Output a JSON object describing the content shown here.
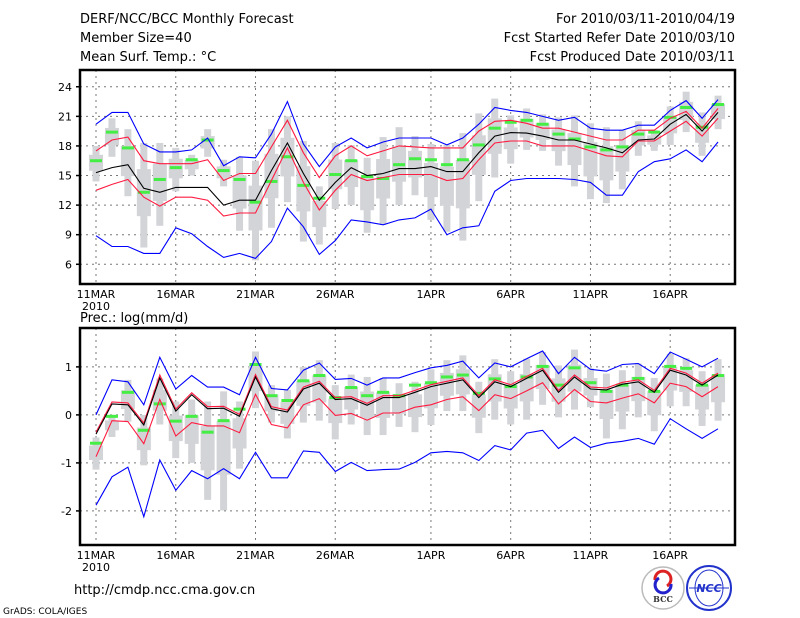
{
  "header": {
    "title": "DERF/NCC/BCC Monthly Forecast",
    "member_size": "Member Size=40",
    "variable": "Mean Surf. Temp.: °C",
    "period": "For 2010/03/11-2010/04/19",
    "start_date": "Fcst Started Refer Date 2010/03/10",
    "produced_date": "Fcst Produced Date 2010/03/11"
  },
  "footer": {
    "url": "http://cmdp.ncc.cma.gov.cn",
    "credit": "GrADS: COLA/IGES",
    "logo_bcc": "BCC",
    "logo_ncc": "NCC"
  },
  "colors": {
    "outer": "#0000ff",
    "spread": "#ff1a40",
    "mean": "#000000",
    "marker": "#44ee44",
    "box": "#d3d4d8"
  },
  "chart_data": [
    {
      "type": "line",
      "title": "Mean Surf. Temp.: °C",
      "ylim": [
        4,
        25.7
      ],
      "yticks": [
        "6",
        "9",
        "12",
        "15",
        "18",
        "21",
        "24"
      ],
      "ytick_values": [
        6,
        9,
        12,
        15,
        18,
        21,
        24
      ],
      "xtick_labels": [
        "11MAR",
        "16MAR",
        "21MAR",
        "26MAR",
        "1APR",
        "6APR",
        "11APR",
        "16APR"
      ],
      "xtick_days": [
        0,
        5,
        10,
        15,
        21,
        26,
        31,
        36
      ],
      "year_label": "2010",
      "grid": true,
      "series": [
        {
          "name": "upper-outer",
          "values": [
            20.2,
            21.4,
            21.4,
            18.2,
            17.4,
            17.4,
            17.6,
            18.8,
            16.0,
            16.9,
            16.8,
            19.2,
            22.5,
            18.2,
            15.9,
            17.9,
            18.8,
            17.8,
            18.4,
            18.8,
            18.8,
            18.8,
            18.1,
            18.8,
            20.2,
            21.9,
            21.6,
            21.4,
            21.0,
            20.6,
            20.9,
            19.8,
            19.6,
            19.6,
            20.1,
            20.1,
            21.6,
            22.6,
            20.8,
            22.7
          ]
        },
        {
          "name": "upper-spread",
          "values": [
            17.5,
            18.6,
            18.9,
            16.5,
            16.2,
            16.2,
            16.2,
            16.6,
            14.5,
            15.2,
            15.2,
            17.9,
            20.6,
            17.3,
            14.8,
            17.0,
            18.0,
            17.0,
            17.5,
            18.0,
            17.9,
            17.8,
            17.8,
            17.8,
            19.5,
            20.5,
            20.6,
            20.3,
            19.8,
            19.8,
            19.4,
            19.0,
            18.6,
            18.6,
            19.6,
            19.6,
            20.8,
            21.5,
            19.8,
            21.8
          ]
        },
        {
          "name": "ensemble-mean",
          "values": [
            15.3,
            15.8,
            16.1,
            13.7,
            13.3,
            13.8,
            13.8,
            13.8,
            12.0,
            12.5,
            12.5,
            15.5,
            18.3,
            15.2,
            12.5,
            14.3,
            15.8,
            15.0,
            15.2,
            15.7,
            15.7,
            15.9,
            15.4,
            15.4,
            17.3,
            19.0,
            19.35,
            19.3,
            19.0,
            18.6,
            18.6,
            18.2,
            17.8,
            17.3,
            18.6,
            18.7,
            20.2,
            21.2,
            19.5,
            21.4
          ]
        },
        {
          "name": "lower-spread",
          "values": [
            13.5,
            14.1,
            14.6,
            12.8,
            11.9,
            12.8,
            12.8,
            12.5,
            10.9,
            11.2,
            11.2,
            14.5,
            17.8,
            14.3,
            11.5,
            13.5,
            15.1,
            14.5,
            14.8,
            15.1,
            15.1,
            15.1,
            14.5,
            14.7,
            16.6,
            18.3,
            18.5,
            18.5,
            18.0,
            18.0,
            18.0,
            17.5,
            17.0,
            16.9,
            18.5,
            18.5,
            19.5,
            20.5,
            19.0,
            20.8
          ]
        },
        {
          "name": "lower-outer",
          "values": [
            8.9,
            7.8,
            7.8,
            7.1,
            7.1,
            9.7,
            9.1,
            7.8,
            6.7,
            7.1,
            6.6,
            8.3,
            11.7,
            9.8,
            7.0,
            8.4,
            10.5,
            10.3,
            10.0,
            10.5,
            10.7,
            11.6,
            9.0,
            9.7,
            9.9,
            13.4,
            14.5,
            14.7,
            14.7,
            14.7,
            14.6,
            14.3,
            13.0,
            13.0,
            15.4,
            16.4,
            16.7,
            17.6,
            16.4,
            18.4
          ]
        }
      ],
      "markers": [
        16.5,
        19.4,
        17.8,
        13.3,
        14.6,
        15.8,
        16.6,
        18.6,
        15.5,
        14.6,
        12.3,
        14.4,
        16.9,
        14.0,
        12.7,
        15.1,
        16.5,
        14.9,
        14.7,
        16.1,
        16.7,
        16.6,
        16.1,
        16.6,
        18.1,
        19.8,
        20.4,
        20.6,
        20.2,
        19.2,
        18.7,
        17.9,
        17.6,
        17.9,
        19.2,
        19.4,
        20.9,
        21.9,
        19.9,
        22.2
      ],
      "range_high": [
        18.0,
        20.8,
        19.7,
        18.3,
        18.3,
        17.8,
        17.1,
        19.7,
        16.6,
        16.9,
        16.5,
        19.7,
        21.0,
        18.5,
        13.9,
        18.3,
        18.1,
        16.8,
        18.9,
        19.9,
        19.0,
        18.2,
        18.1,
        19.3,
        21.3,
        22.8,
        21.1,
        21.8,
        21.2,
        20.9,
        21.1,
        20.3,
        19.9,
        19.6,
        20.5,
        19.6,
        22.0,
        23.5,
        21.4,
        23.1
      ],
      "range_low": [
        14.4,
        16.9,
        12.9,
        7.7,
        9.9,
        13.4,
        15.0,
        16.9,
        13.9,
        9.4,
        6.4,
        9.7,
        12.3,
        8.3,
        8.0,
        11.6,
        12.0,
        9.2,
        10.0,
        12.0,
        13.0,
        10.5,
        9.3,
        8.4,
        12.4,
        14.8,
        16.2,
        17.6,
        17.5,
        16.0,
        13.9,
        12.6,
        12.2,
        13.6,
        17.0,
        17.5,
        18.1,
        19.4,
        17.0,
        19.7
      ]
    },
    {
      "type": "line",
      "title": "Prec.: log(mm/d)",
      "ylim": [
        -2.71,
        1.81
      ],
      "yticks": [
        "-2",
        "-1",
        "0",
        "1"
      ],
      "ytick_values": [
        -2,
        -1,
        0,
        1
      ],
      "xtick_labels": [
        "11MAR",
        "16MAR",
        "21MAR",
        "26MAR",
        "1APR",
        "6APR",
        "11APR",
        "16APR"
      ],
      "xtick_days": [
        0,
        5,
        10,
        15,
        21,
        26,
        31,
        36
      ],
      "year_label": "2010",
      "grid": true,
      "series": [
        {
          "name": "upper-outer",
          "values": [
            0.0,
            0.73,
            0.69,
            0.21,
            1.2,
            0.54,
            0.82,
            0.58,
            0.58,
            0.42,
            1.2,
            0.55,
            0.52,
            0.93,
            1.08,
            0.74,
            0.76,
            0.62,
            0.77,
            0.77,
            0.88,
            0.98,
            1.03,
            1.12,
            0.77,
            1.08,
            1.0,
            1.17,
            1.33,
            0.86,
            1.2,
            0.95,
            0.91,
            1.05,
            1.07,
            0.86,
            1.31,
            1.16,
            1.0,
            1.18
          ]
        },
        {
          "name": "upper-spread",
          "values": [
            -0.36,
            0.27,
            0.25,
            -0.17,
            0.83,
            0.12,
            0.46,
            0.17,
            0.18,
            0.01,
            0.84,
            0.17,
            0.1,
            0.58,
            0.7,
            0.36,
            0.38,
            0.24,
            0.4,
            0.4,
            0.51,
            0.63,
            0.7,
            0.77,
            0.4,
            0.73,
            0.63,
            0.8,
            0.97,
            0.51,
            0.83,
            0.58,
            0.56,
            0.68,
            0.73,
            0.51,
            0.97,
            0.87,
            0.66,
            0.87
          ]
        },
        {
          "name": "ensemble-mean",
          "values": [
            -0.4,
            0.23,
            0.21,
            -0.21,
            0.77,
            0.08,
            0.42,
            0.13,
            0.14,
            -0.03,
            0.79,
            0.13,
            0.06,
            0.54,
            0.66,
            0.32,
            0.34,
            0.2,
            0.36,
            0.36,
            0.47,
            0.59,
            0.66,
            0.73,
            0.36,
            0.69,
            0.59,
            0.76,
            0.93,
            0.47,
            0.79,
            0.54,
            0.52,
            0.64,
            0.69,
            0.47,
            0.93,
            0.83,
            0.62,
            0.83
          ]
        },
        {
          "name": "lower-spread",
          "values": [
            -0.87,
            -0.12,
            -0.14,
            -0.6,
            0.32,
            -0.44,
            -0.16,
            -0.23,
            -0.23,
            -0.37,
            0.43,
            -0.2,
            -0.27,
            0.21,
            0.34,
            -0.01,
            0.03,
            -0.11,
            0.04,
            0.04,
            0.16,
            0.21,
            0.32,
            0.38,
            0.09,
            0.42,
            0.34,
            0.5,
            0.67,
            0.23,
            0.53,
            0.28,
            0.25,
            0.35,
            0.44,
            0.25,
            0.66,
            0.59,
            0.38,
            0.59
          ]
        },
        {
          "name": "lower-outer",
          "values": [
            -1.88,
            -1.29,
            -1.09,
            -2.12,
            -0.94,
            -1.57,
            -1.16,
            -1.33,
            -1.12,
            -1.33,
            -0.78,
            -1.31,
            -1.31,
            -0.75,
            -0.78,
            -1.18,
            -0.99,
            -1.16,
            -1.14,
            -1.13,
            -0.99,
            -0.79,
            -0.76,
            -0.79,
            -0.95,
            -0.64,
            -0.73,
            -0.38,
            -0.32,
            -0.7,
            -0.46,
            -0.68,
            -0.59,
            -0.55,
            -0.49,
            -0.61,
            -0.08,
            -0.29,
            -0.49,
            -0.29
          ]
        }
      ],
      "markers": [
        -0.59,
        -0.03,
        0.47,
        -0.32,
        0.23,
        -0.13,
        -0.03,
        -0.36,
        -0.12,
        0.12,
        1.05,
        0.4,
        0.3,
        0.71,
        0.82,
        0.36,
        0.57,
        0.4,
        0.47,
        0.4,
        0.62,
        0.67,
        0.79,
        0.83,
        0.45,
        0.75,
        0.59,
        0.79,
        1.01,
        0.62,
        0.98,
        0.67,
        0.49,
        0.62,
        0.76,
        0.49,
        1.01,
        0.97,
        0.62,
        0.82
      ],
      "range_high": [
        -0.47,
        0.0,
        0.73,
        0.0,
        0.76,
        0.28,
        0.32,
        0.28,
        0.49,
        0.28,
        1.32,
        0.62,
        0.52,
        1.0,
        1.14,
        0.62,
        0.84,
        0.79,
        0.77,
        0.66,
        0.69,
        0.95,
        1.14,
        1.24,
        0.69,
        1.16,
        0.91,
        1.17,
        1.31,
        1.03,
        1.36,
        0.97,
        0.86,
        0.93,
        1.07,
        0.77,
        1.27,
        1.18,
        0.91,
        1.16
      ],
      "range_low": [
        -1.14,
        -0.46,
        -0.14,
        -1.05,
        -0.2,
        -0.9,
        -1.0,
        -1.77,
        -1.99,
        -1.12,
        0.14,
        -0.16,
        -0.49,
        -0.16,
        -0.12,
        -0.51,
        -0.2,
        -0.42,
        -0.42,
        -0.25,
        -0.36,
        -0.21,
        0.08,
        0.08,
        -0.38,
        -0.1,
        -0.2,
        -0.1,
        0.21,
        -0.05,
        0.11,
        0.16,
        -0.49,
        -0.3,
        -0.05,
        -0.34,
        0.18,
        0.18,
        -0.23,
        -0.12
      ]
    }
  ]
}
